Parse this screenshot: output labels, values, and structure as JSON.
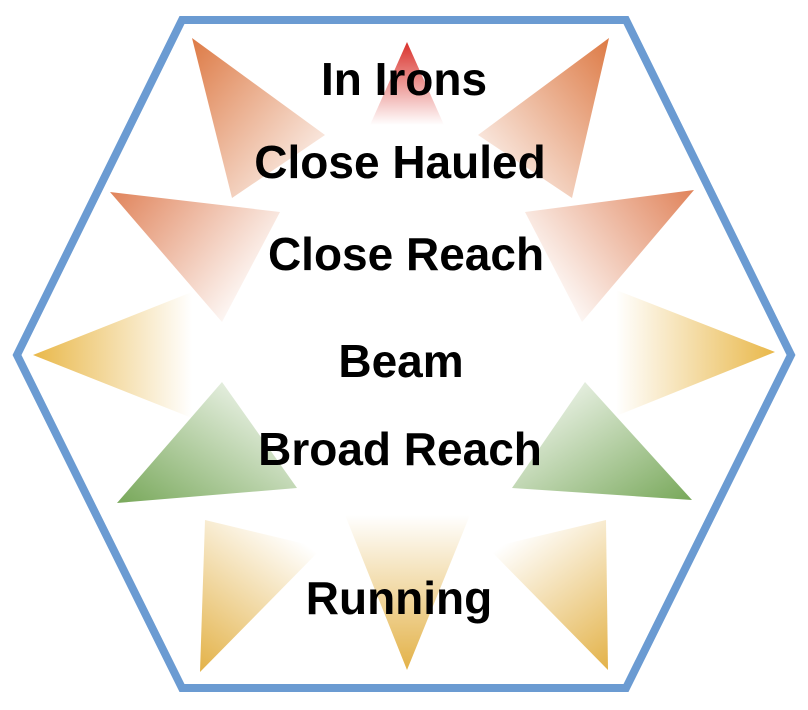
{
  "diagram": {
    "labels": [
      "In Irons",
      "Close Hauled",
      "Close Reach",
      "Beam",
      "Broad Reach",
      "Running"
    ],
    "colors": {
      "hexagon_stroke": "#6b9bd2",
      "in_irons": "#d9302a",
      "close_hauled": "#dd7a45",
      "close_reach": "#e0835a",
      "beam": "#e9b84a",
      "broad_reach": "#78a85a",
      "running": "#e3b248"
    }
  }
}
